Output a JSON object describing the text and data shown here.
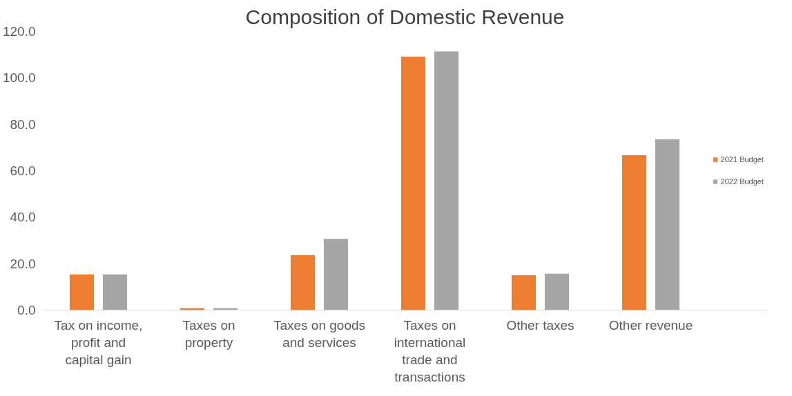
{
  "chart_data": {
    "type": "bar",
    "title": "Composition of Domestic Revenue",
    "categories": [
      "Tax on income, profit and capital gain",
      "Taxes on property",
      "Taxes on goods and services",
      "Taxes on international trade and transactions",
      "Other taxes",
      "Other revenue"
    ],
    "series": [
      {
        "name": "2021 Budget",
        "color": "#ed7d31",
        "values": [
          15.4,
          0.8,
          23.6,
          109.1,
          15.0,
          66.7
        ]
      },
      {
        "name": "2022 Budget",
        "color": "#a5a5a5",
        "values": [
          15.4,
          0.8,
          30.7,
          111.4,
          15.7,
          73.5
        ]
      }
    ],
    "ylim": [
      0,
      120
    ],
    "yticks": [
      {
        "value": 0,
        "label": "0.0"
      },
      {
        "value": 20,
        "label": "20.0"
      },
      {
        "value": 40,
        "label": "40.0"
      },
      {
        "value": 60,
        "label": "60.0"
      },
      {
        "value": 80,
        "label": "80.0"
      },
      {
        "value": 100,
        "label": "100.0"
      },
      {
        "value": 120,
        "label": "120.0"
      }
    ],
    "grid": false,
    "legend": "right"
  }
}
